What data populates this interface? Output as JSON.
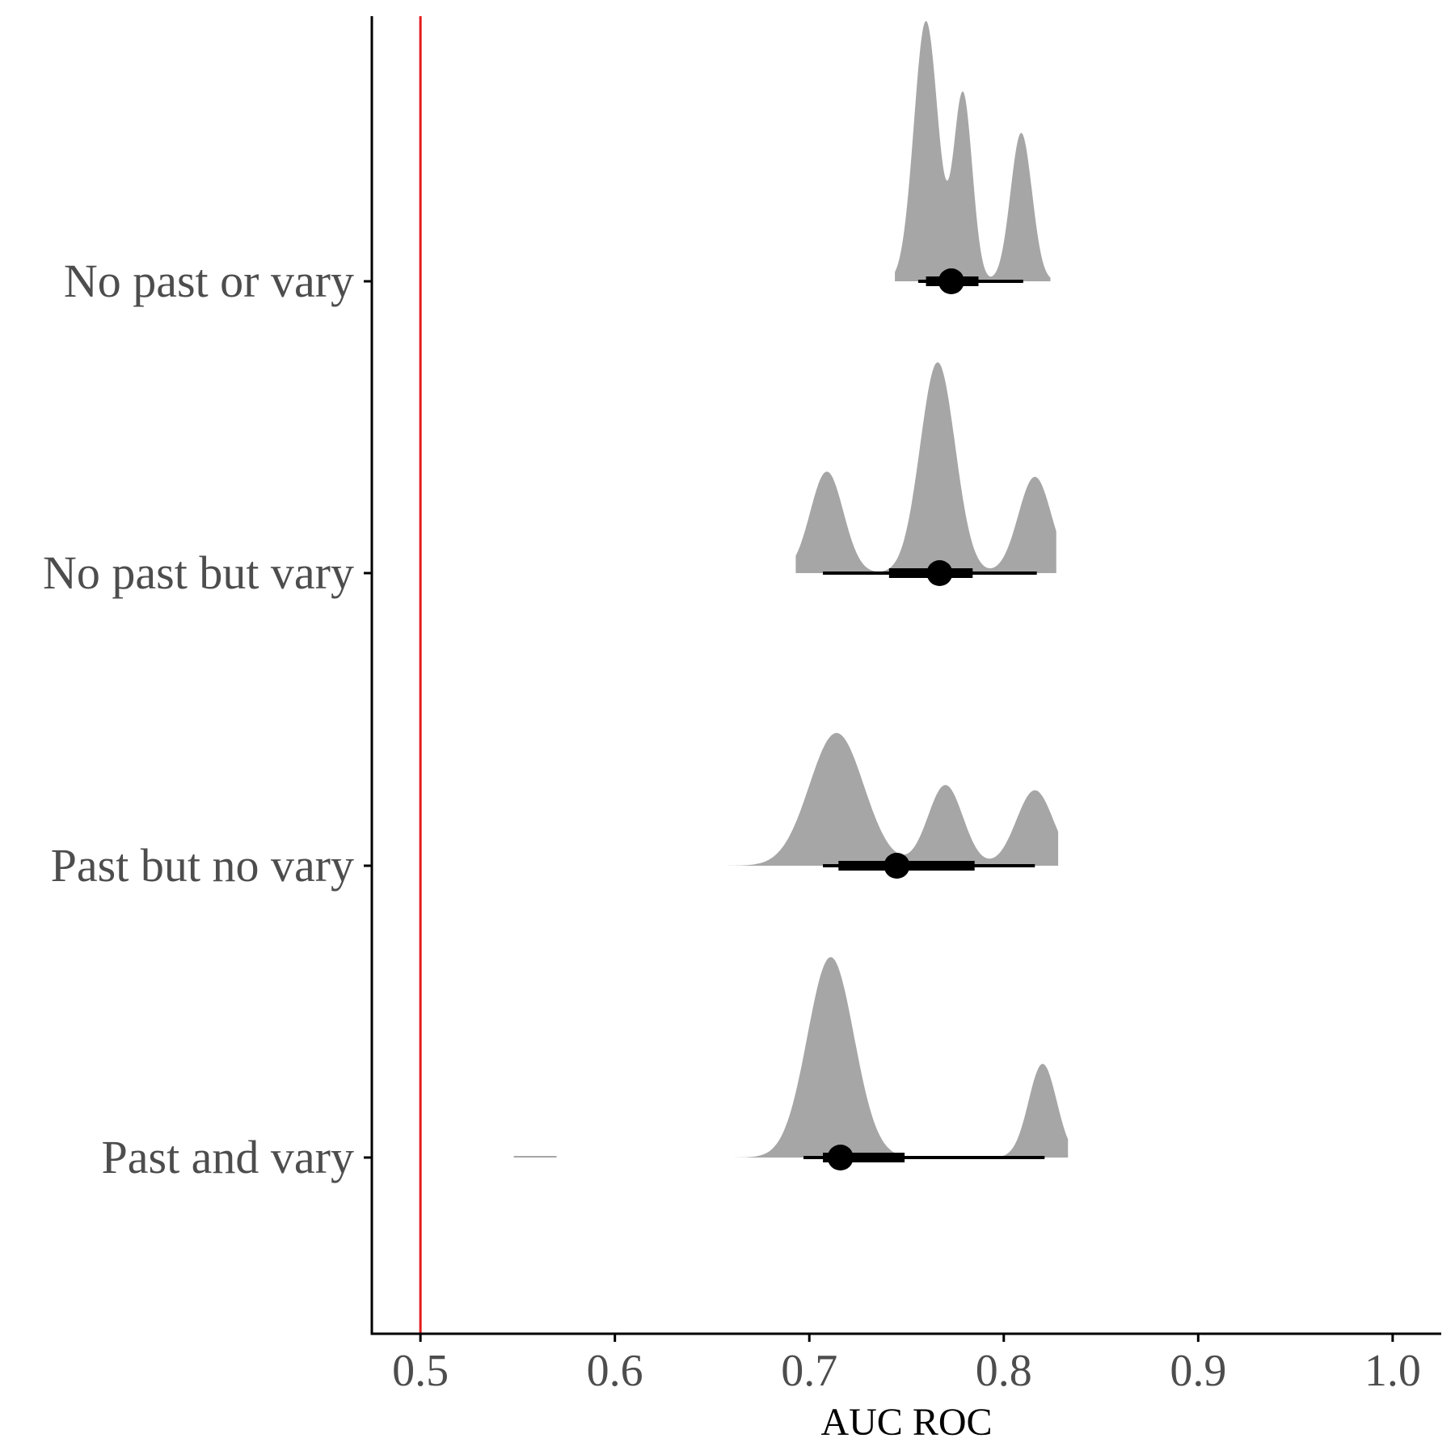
{
  "chart_data": {
    "type": "ridgeline-density",
    "title": "",
    "xlabel": "AUC ROC",
    "ylabel": "",
    "xlim": [
      0.475,
      1.025
    ],
    "x_ticks": [
      {
        "value": 0.5,
        "label": "0.5"
      },
      {
        "value": 0.6,
        "label": "0.6"
      },
      {
        "value": 0.7,
        "label": "0.7"
      },
      {
        "value": 0.8,
        "label": "0.8"
      },
      {
        "value": 0.9,
        "label": "0.9"
      },
      {
        "value": 1.0,
        "label": "1.0"
      }
    ],
    "reference_line": {
      "x": 0.5,
      "color": "#e41a1c"
    },
    "density_color": "#a6a6a6",
    "grid": false,
    "legend": "none",
    "categories": [
      "No past or vary",
      "No past but vary",
      "Past but no vary",
      "Past and vary"
    ],
    "series": [
      {
        "category": "No past or vary",
        "density_range": [
          0.744,
          0.824
        ],
        "peaks": [
          {
            "center": 0.76,
            "sd": 0.0062,
            "height": 1.0
          },
          {
            "center": 0.779,
            "sd": 0.0048,
            "height": 0.72
          },
          {
            "center": 0.809,
            "sd": 0.0055,
            "height": 0.57
          }
        ],
        "point": 0.773,
        "inner_interval": [
          0.76,
          0.787
        ],
        "outer_interval": [
          0.756,
          0.81
        ]
      },
      {
        "category": "No past but vary",
        "density_range": [
          0.693,
          0.827
        ],
        "peaks": [
          {
            "center": 0.709,
            "sd": 0.0085,
            "height": 0.39
          },
          {
            "center": 0.766,
            "sd": 0.009,
            "height": 0.81
          },
          {
            "center": 0.816,
            "sd": 0.0085,
            "height": 0.37
          }
        ],
        "point": 0.767,
        "inner_interval": [
          0.741,
          0.784
        ],
        "outer_interval": [
          0.707,
          0.817
        ]
      },
      {
        "category": "Past but no vary",
        "density_range": [
          0.635,
          0.828
        ],
        "peaks": [
          {
            "center": 0.714,
            "sd": 0.014,
            "height": 0.51
          },
          {
            "center": 0.77,
            "sd": 0.009,
            "height": 0.31
          },
          {
            "center": 0.816,
            "sd": 0.0095,
            "height": 0.29
          }
        ],
        "point": 0.745,
        "inner_interval": [
          0.715,
          0.785
        ],
        "outer_interval": [
          0.707,
          0.816
        ]
      },
      {
        "category": "Past and vary",
        "density_range": [
          0.632,
          0.833
        ],
        "tail_segment": [
          0.548,
          0.57
        ],
        "peaks": [
          {
            "center": 0.711,
            "sd": 0.012,
            "height": 0.77
          },
          {
            "center": 0.82,
            "sd": 0.0072,
            "height": 0.36
          }
        ],
        "point": 0.716,
        "inner_interval": [
          0.707,
          0.749
        ],
        "outer_interval": [
          0.697,
          0.821
        ]
      }
    ]
  }
}
